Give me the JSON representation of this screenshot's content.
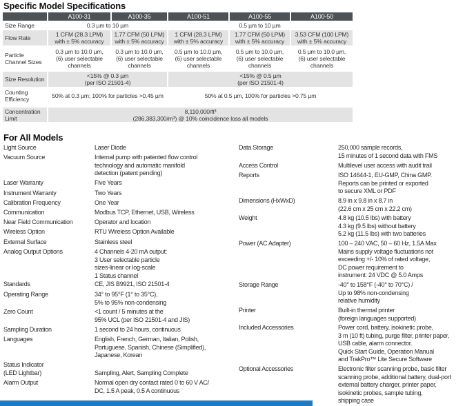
{
  "specific": {
    "title": "Specific Model Specifications",
    "models": [
      "A100-31",
      "A100-35",
      "A100-51",
      "A100-55",
      "A100-50"
    ],
    "rows": [
      {
        "label": "Size Range",
        "cells": [
          {
            "text": "0.3 µm to 10 µm",
            "span": 2
          },
          {
            "text": "",
            "span": 1
          },
          {
            "text": "0.5 µm to 10 µm",
            "span": 1
          },
          {
            "text": "",
            "span": 1
          }
        ]
      },
      {
        "label": "Flow Rate",
        "cells": [
          {
            "text": "1 CFM (28.3 LPM)\nwith ± 5% accuracy",
            "span": 1
          },
          {
            "text": "1.77 CFM (50 LPM)\nwith ± 5% accuracy",
            "span": 1
          },
          {
            "text": "1 CFM (28.3 LPM)\nwith ± 5% accuracy",
            "span": 1
          },
          {
            "text": "1.77 CFM (50 LPM)\nwith ± 5% accuracy",
            "span": 1
          },
          {
            "text": "3.53 CFM (100 LPM)\nwith ± 5% accuracy",
            "span": 1
          }
        ]
      },
      {
        "label": "Particle\nChannel Sizes",
        "cells": [
          {
            "text": "0.3 µm to 10.0 µm,\n(6) user selectable\nchannels",
            "span": 1
          },
          {
            "text": "0.3 µm to 10.0 µm,\n(6) user selectable\nchannels",
            "span": 1
          },
          {
            "text": "0.5 µm to 10.0 µm,\n(6) user selectable\nchannels",
            "span": 1
          },
          {
            "text": "0.5 µm to 10.0 µm,\n(6) user selectable\nchannels",
            "span": 1
          },
          {
            "text": "0.5 µm to 10.0 µm,\n(6) user selectable\nchannels",
            "span": 1
          }
        ]
      },
      {
        "label": "Size Resolution",
        "cells": [
          {
            "text": "<15% @ 0.3 µm\n(per ISO 21501-4)",
            "span": 2
          },
          {
            "text": "<15% @ 0.5 µm\n(per ISO 21501-4)",
            "span": 3
          }
        ]
      },
      {
        "label": "Counting\nEfficiency",
        "cells": [
          {
            "text": "50% at 0.3 µm; 100% for particles >0.45 µm",
            "span": 2
          },
          {
            "text": "50% at 0.5 µm, 100% for particles >0.75 µm",
            "span": 3
          }
        ]
      },
      {
        "label": "Concentration\nLimit",
        "cells": [
          {
            "text": "8,110,000/ft³\n(286,383,300/m³) @ 10% coincidence loss all models",
            "span": 5
          }
        ]
      }
    ]
  },
  "all_models": {
    "title": "For All Models",
    "left": [
      {
        "label": "Light Source",
        "value": "Laser Diode"
      },
      {
        "label": "Vacuum Source",
        "value": "Internal pump with patented flow control\ntechnology and automatic manifold\ndetection (patent pending)"
      },
      {
        "label": "Laser Warranty",
        "value": "Five Years"
      },
      {
        "label": "Instrument Warranty",
        "value": "Two Years"
      },
      {
        "label": "Calibration Frequency",
        "value": "One Year"
      },
      {
        "label": "Communication",
        "value": "Modbus TCP, Ethernet, USB, Wireless"
      },
      {
        "label": "Near Field Communication",
        "value": "Operator and location"
      },
      {
        "label": "Wireless Option",
        "value": "RTU Wireless Option Available"
      },
      {
        "label": "External Surface",
        "value": "Stainless steel"
      },
      {
        "label": "Analog Output Options",
        "value": "4 Channels 4-20 mA output:\n3 User selectable particle\nsizes-linear or log-scale\n1 Status channel"
      },
      {
        "label": "Standards",
        "value": "CE, JIS B9921, ISO 21501-4"
      },
      {
        "label": "Operating Range",
        "value": "34° to 95°F (1° to 35°C),\n5% to 95% non-condensing"
      },
      {
        "label": "Zero Count",
        "value": "<1 count / 5 minutes at the\n95% UCL (per ISO 21501-4 and JIS)"
      },
      {
        "label": "Sampling Duration",
        "value": "1 second to 24 hours, continuous"
      },
      {
        "label": "Languages",
        "value": "English, French, German, Italian, Polish,\nPortuguese, Spanish, Chinese (Simplified),\nJapanese, Korean"
      },
      {
        "label": "Status Indicator\n(LED Lightbar)",
        "value": "Sampling, Alert, Sampling Complete"
      },
      {
        "label": "Alarm Output",
        "value": "Normal open dry contact rated 0 to 60 V AC/\nDC, 1.5 A peak, 0.5 A continuous"
      }
    ],
    "right": [
      {
        "label": "Data Storage",
        "value": "250,000 sample records,\n15 minutes of 1 second data with FMS"
      },
      {
        "label": "Access Control",
        "value": "Multilevel user access with audit trail"
      },
      {
        "label": "Reports",
        "value": "ISO 14644-1, EU-GMP, China GMP.\nReports can be printed or exported\nto secure XML or PDF"
      },
      {
        "label": "Dimensions (HxWxD)",
        "value": "8.9 in x 9.8 in x 8.7 in\n(22.6 cm x 25 cm x 22.2 cm)"
      },
      {
        "label": "Weight",
        "value": "4.8 kg (10.5 lbs) with battery\n4.3 kg (9.5 lbs) without battery\n5.2 kg (11.5 lbs) with two batteries"
      },
      {
        "label": "Power (AC Adapter)",
        "value": "100 – 240 VAC, 50 – 60 Hz, 1.5A Max\nMains supply voltage fluctuations not\nexceeding +/- 10% of rated voltage,\nDC power requirement to\ninstrument: 24 VDC @ 5.0 Amps"
      },
      {
        "label": "Storage Range",
        "value": "-40° to 158°F (-40° to 70°C) /\nUp to 98% non-condensing\nrelative humidity"
      },
      {
        "label": "Printer",
        "value": "Built-in thermal printer\n(foreign languages supported)"
      },
      {
        "label": "Included Accessories",
        "value": "Power cord, battery, isokinetic probe,\n3 m (10 ft) tubing, purge filter, printer paper,\nUSB cable, alarm connector.\nQuick Start Guide, Operation Manual\nand TrakPro™ Lite Secure Software"
      },
      {
        "label": "Optional Accessories",
        "value": "Electronic filter scanning probe, basic filter\nscanning probe, additional battery, dual-port\nexternal battery charger, printer paper,\nisokinetic probes, sample tubing,\nshipping case"
      }
    ]
  },
  "colors": {
    "header_bg": "#4d5257",
    "row_shade": "#e3e3e3",
    "accent_bar": "#1e7bc4"
  }
}
